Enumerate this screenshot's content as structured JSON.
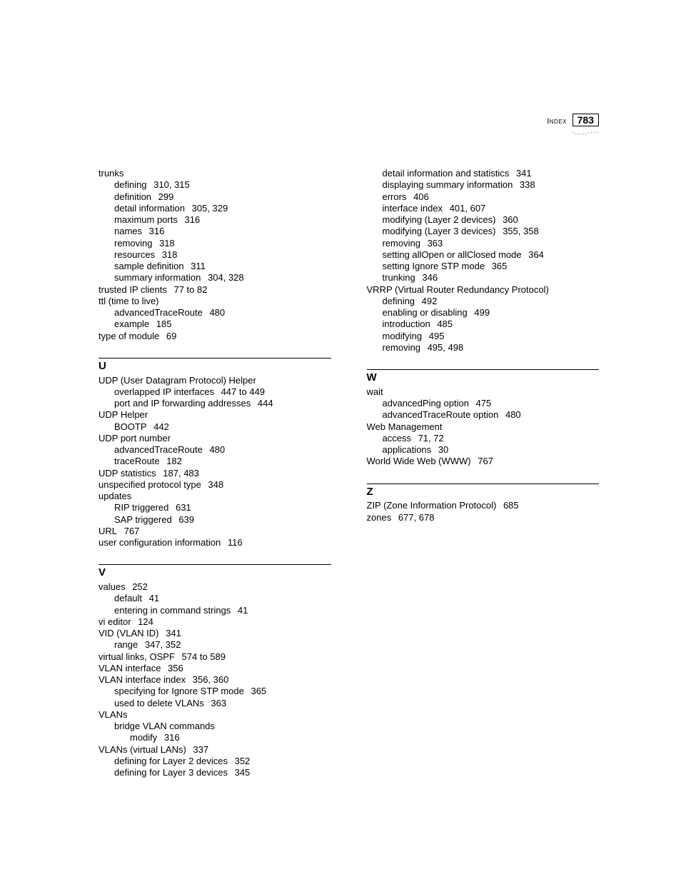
{
  "header": {
    "label": "Index",
    "page_number": "783",
    "dots": "·.....····"
  },
  "left_column": [
    {
      "lvl": 1,
      "text": "trunks"
    },
    {
      "lvl": 2,
      "text": "defining",
      "refs": "310, 315"
    },
    {
      "lvl": 2,
      "text": "definition",
      "refs": "299"
    },
    {
      "lvl": 2,
      "text": "detail information",
      "refs": "305, 329"
    },
    {
      "lvl": 2,
      "text": "maximum ports",
      "refs": "316"
    },
    {
      "lvl": 2,
      "text": "names",
      "refs": "316"
    },
    {
      "lvl": 2,
      "text": "removing",
      "refs": "318"
    },
    {
      "lvl": 2,
      "text": "resources",
      "refs": "318"
    },
    {
      "lvl": 2,
      "text": "sample definition",
      "refs": "311"
    },
    {
      "lvl": 2,
      "text": "summary information",
      "refs": "304, 328"
    },
    {
      "lvl": 1,
      "text": "trusted IP clients",
      "refs": "77 to 82"
    },
    {
      "lvl": 1,
      "text": "ttl (time to live)"
    },
    {
      "lvl": 2,
      "text": "advancedTraceRoute",
      "refs": "480"
    },
    {
      "lvl": 2,
      "text": "example",
      "refs": "185"
    },
    {
      "lvl": 1,
      "text": "type of module",
      "refs": "69"
    },
    {
      "type": "section",
      "letter": "U"
    },
    {
      "lvl": 1,
      "text": "UDP (User Datagram Protocol) Helper"
    },
    {
      "lvl": 2,
      "text": "overlapped IP interfaces",
      "refs": "447 to 449"
    },
    {
      "lvl": 2,
      "text": "port and IP forwarding addresses",
      "refs": "444"
    },
    {
      "lvl": 1,
      "text": "UDP Helper"
    },
    {
      "lvl": 2,
      "text": "BOOTP",
      "refs": "442"
    },
    {
      "lvl": 1,
      "text": "UDP port number"
    },
    {
      "lvl": 2,
      "text": "advancedTraceRoute",
      "refs": "480"
    },
    {
      "lvl": 2,
      "text": "traceRoute",
      "refs": "182"
    },
    {
      "lvl": 1,
      "text": "UDP statistics",
      "refs": "187, 483"
    },
    {
      "lvl": 1,
      "text": "unspecified protocol type",
      "refs": "348"
    },
    {
      "lvl": 1,
      "text": "updates"
    },
    {
      "lvl": 2,
      "text": "RIP triggered",
      "refs": "631"
    },
    {
      "lvl": 2,
      "text": "SAP triggered",
      "refs": "639"
    },
    {
      "lvl": 1,
      "text": "URL",
      "refs": "767"
    },
    {
      "lvl": 1,
      "text": "user configuration information",
      "refs": "116"
    },
    {
      "type": "section",
      "letter": "V"
    },
    {
      "lvl": 1,
      "text": "values",
      "refs": "252"
    },
    {
      "lvl": 2,
      "text": "default",
      "refs": "41"
    },
    {
      "lvl": 2,
      "text": "entering in command strings",
      "refs": "41"
    },
    {
      "lvl": 1,
      "text": "vi editor",
      "refs": "124"
    },
    {
      "lvl": 1,
      "text": "VID (VLAN ID)",
      "refs": "341"
    },
    {
      "lvl": 2,
      "text": "range",
      "refs": "347, 352"
    },
    {
      "lvl": 1,
      "text": "virtual links, OSPF",
      "refs": "574 to 589"
    },
    {
      "lvl": 1,
      "text": "VLAN interface",
      "refs": "356"
    },
    {
      "lvl": 1,
      "text": "VLAN interface index",
      "refs": "356, 360"
    },
    {
      "lvl": 2,
      "text": "specifying for Ignore STP mode",
      "refs": "365"
    },
    {
      "lvl": 2,
      "text": "used to delete VLANs",
      "refs": "363"
    },
    {
      "lvl": 1,
      "text": "VLANs"
    },
    {
      "lvl": 2,
      "text": "bridge VLAN commands"
    },
    {
      "lvl": 3,
      "text": "modify",
      "refs": "316"
    },
    {
      "lvl": 1,
      "text": "VLANs (virtual LANs)",
      "refs": "337"
    },
    {
      "lvl": 2,
      "text": "defining for Layer 2 devices",
      "refs": "352"
    },
    {
      "lvl": 2,
      "text": "defining for Layer 3 devices",
      "refs": "345"
    }
  ],
  "right_column": [
    {
      "lvl": 2,
      "text": "detail information and statistics",
      "refs": "341"
    },
    {
      "lvl": 2,
      "text": "displaying summary information",
      "refs": "338"
    },
    {
      "lvl": 2,
      "text": "errors",
      "refs": "406"
    },
    {
      "lvl": 2,
      "text": "interface index",
      "refs": "401, 607"
    },
    {
      "lvl": 2,
      "text": "modifying (Layer 2 devices)",
      "refs": "360"
    },
    {
      "lvl": 2,
      "text": "modifying (Layer 3 devices)",
      "refs": "355, 358"
    },
    {
      "lvl": 2,
      "text": "removing",
      "refs": "363"
    },
    {
      "lvl": 2,
      "text": "setting allOpen or allClosed mode",
      "refs": "364"
    },
    {
      "lvl": 2,
      "text": "setting Ignore STP mode",
      "refs": "365"
    },
    {
      "lvl": 2,
      "text": "trunking",
      "refs": "346"
    },
    {
      "lvl": 1,
      "text": "VRRP (Virtual Router Redundancy Protocol)"
    },
    {
      "lvl": 2,
      "text": "defining",
      "refs": "492"
    },
    {
      "lvl": 2,
      "text": "enabling or disabling",
      "refs": "499"
    },
    {
      "lvl": 2,
      "text": "introduction",
      "refs": "485"
    },
    {
      "lvl": 2,
      "text": "modifying",
      "refs": "495"
    },
    {
      "lvl": 2,
      "text": "removing",
      "refs": "495, 498"
    },
    {
      "type": "section",
      "letter": "W"
    },
    {
      "lvl": 1,
      "text": "wait"
    },
    {
      "lvl": 2,
      "text": "advancedPing option",
      "refs": "475"
    },
    {
      "lvl": 2,
      "text": "advancedTraceRoute option",
      "refs": "480"
    },
    {
      "lvl": 1,
      "text": "Web Management"
    },
    {
      "lvl": 2,
      "text": "access",
      "refs": "71, 72"
    },
    {
      "lvl": 2,
      "text": "applications",
      "refs": "30"
    },
    {
      "lvl": 1,
      "text": "World Wide Web (WWW)",
      "refs": "767"
    },
    {
      "type": "section",
      "letter": "Z"
    },
    {
      "lvl": 1,
      "text": "ZIP (Zone Information Protocol)",
      "refs": "685"
    },
    {
      "lvl": 1,
      "text": "zones",
      "refs": "677, 678"
    }
  ]
}
